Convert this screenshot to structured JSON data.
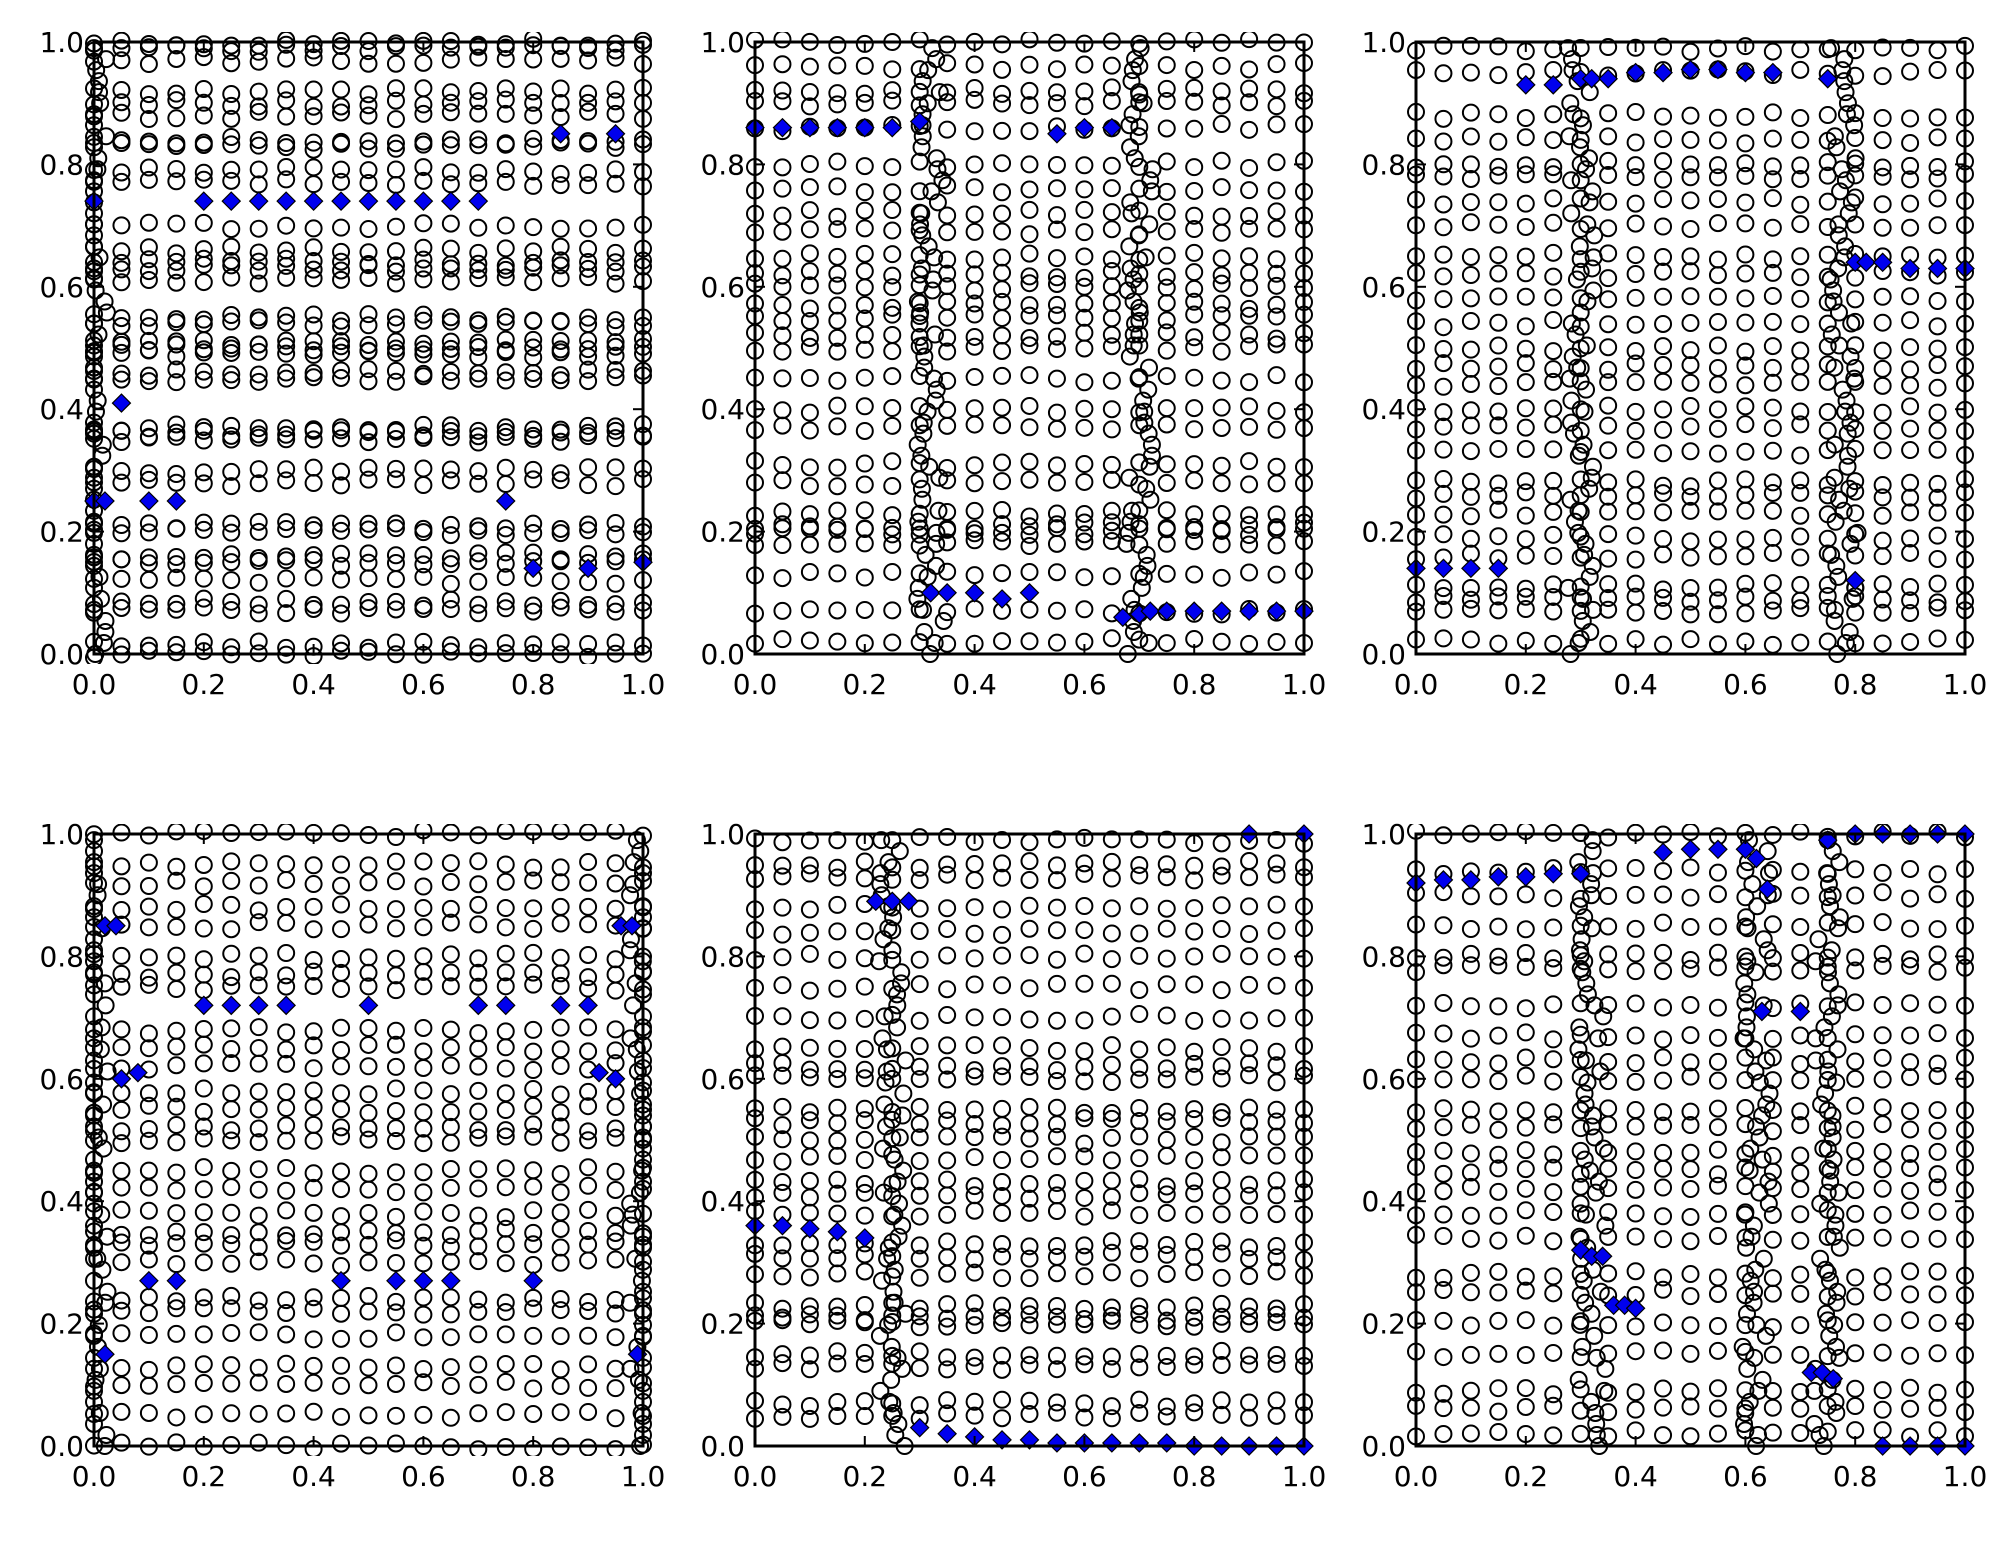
{
  "chart_data": [
    {
      "type": "scatter",
      "title": "",
      "xlim": [
        0,
        1
      ],
      "ylim": [
        0,
        1
      ],
      "xticks": [
        "0.0",
        "0.2",
        "0.4",
        "0.6",
        "0.8",
        "1.0"
      ],
      "yticks": [
        "0.0",
        "0.2",
        "0.4",
        "0.6",
        "0.8",
        "1.0"
      ],
      "circle_series": {
        "x_step": 0.05,
        "y_levels": [
          0,
          0.015,
          0.07,
          0.085,
          0.12,
          0.15,
          0.16,
          0.2,
          0.21,
          0.28,
          0.3,
          0.35,
          0.36,
          0.37,
          0.45,
          0.46,
          0.49,
          0.5,
          0.51,
          0.54,
          0.55,
          0.61,
          0.63,
          0.64,
          0.66,
          0.7,
          0.77,
          0.79,
          0.83,
          0.84,
          0.88,
          0.9,
          0.92,
          0.97,
          0.99,
          1.0
        ],
        "dense_columns": [
          0.0
        ]
      },
      "highlight_series": {
        "marker": "diamond",
        "color": "#0000ee",
        "points": [
          [
            0,
            0.74
          ],
          [
            0.2,
            0.74
          ],
          [
            0.25,
            0.74
          ],
          [
            0.3,
            0.74
          ],
          [
            0.35,
            0.74
          ],
          [
            0.4,
            0.74
          ],
          [
            0.45,
            0.74
          ],
          [
            0.5,
            0.74
          ],
          [
            0.55,
            0.74
          ],
          [
            0.6,
            0.74
          ],
          [
            0.65,
            0.74
          ],
          [
            0.7,
            0.74
          ],
          [
            0.85,
            0.85
          ],
          [
            0.95,
            0.85
          ],
          [
            0.05,
            0.41
          ],
          [
            0.0,
            0.25
          ],
          [
            0.02,
            0.25
          ],
          [
            0.1,
            0.25
          ],
          [
            0.15,
            0.25
          ],
          [
            0.75,
            0.25
          ],
          [
            0.8,
            0.14
          ],
          [
            0.9,
            0.14
          ],
          [
            1.0,
            0.15
          ]
        ]
      }
    },
    {
      "type": "scatter",
      "title": "",
      "xlim": [
        0,
        1
      ],
      "ylim": [
        0,
        1
      ],
      "xticks": [
        "0.0",
        "0.2",
        "0.4",
        "0.6",
        "0.8",
        "1.0"
      ],
      "yticks": [
        "0.0",
        "0.2",
        "0.4",
        "0.6",
        "0.8",
        "1.0"
      ],
      "circle_series": {
        "x_step": 0.05,
        "y_levels": [
          0.02,
          0.07,
          0.13,
          0.18,
          0.2,
          0.21,
          0.23,
          0.28,
          0.31,
          0.37,
          0.4,
          0.45,
          0.5,
          0.52,
          0.55,
          0.57,
          0.6,
          0.62,
          0.65,
          0.69,
          0.72,
          0.76,
          0.8,
          0.86,
          0.9,
          0.92,
          0.96,
          1.0
        ],
        "dense_columns": [
          0.32,
          0.7
        ]
      },
      "highlight_series": {
        "marker": "diamond",
        "color": "#0000ee",
        "points": [
          [
            0,
            0.86
          ],
          [
            0.05,
            0.86
          ],
          [
            0.1,
            0.86
          ],
          [
            0.15,
            0.86
          ],
          [
            0.2,
            0.86
          ],
          [
            0.25,
            0.86
          ],
          [
            0.3,
            0.87
          ],
          [
            0.55,
            0.85
          ],
          [
            0.6,
            0.86
          ],
          [
            0.65,
            0.86
          ],
          [
            0.32,
            0.1
          ],
          [
            0.35,
            0.1
          ],
          [
            0.4,
            0.1
          ],
          [
            0.45,
            0.09
          ],
          [
            0.5,
            0.1
          ],
          [
            0.67,
            0.06
          ],
          [
            0.7,
            0.065
          ],
          [
            0.72,
            0.07
          ],
          [
            0.75,
            0.07
          ],
          [
            0.8,
            0.07
          ],
          [
            0.85,
            0.07
          ],
          [
            0.9,
            0.07
          ],
          [
            0.95,
            0.07
          ],
          [
            1.0,
            0.07
          ]
        ]
      }
    },
    {
      "type": "scatter",
      "title": "",
      "xlim": [
        0,
        1
      ],
      "ylim": [
        0,
        1
      ],
      "xticks": [
        "0.0",
        "0.2",
        "0.4",
        "0.6",
        "0.8",
        "1.0"
      ],
      "yticks": [
        "0.0",
        "0.2",
        "0.4",
        "0.6",
        "0.8",
        "1.0"
      ],
      "circle_series": {
        "x_step": 0.05,
        "y_levels": [
          0.02,
          0.07,
          0.09,
          0.11,
          0.16,
          0.19,
          0.23,
          0.26,
          0.28,
          0.33,
          0.37,
          0.4,
          0.44,
          0.47,
          0.5,
          0.54,
          0.58,
          0.62,
          0.65,
          0.7,
          0.74,
          0.78,
          0.8,
          0.84,
          0.88,
          0.95,
          0.99
        ],
        "dense_columns": [
          0.3,
          0.78
        ]
      },
      "highlight_series": {
        "marker": "diamond",
        "color": "#0000ee",
        "points": [
          [
            0.2,
            0.93
          ],
          [
            0.25,
            0.93
          ],
          [
            0.3,
            0.94
          ],
          [
            0.32,
            0.94
          ],
          [
            0.35,
            0.94
          ],
          [
            0.4,
            0.95
          ],
          [
            0.45,
            0.95
          ],
          [
            0.5,
            0.955
          ],
          [
            0.55,
            0.955
          ],
          [
            0.6,
            0.95
          ],
          [
            0.65,
            0.95
          ],
          [
            0.75,
            0.94
          ],
          [
            0.8,
            0.64
          ],
          [
            0.82,
            0.64
          ],
          [
            0.85,
            0.64
          ],
          [
            0.9,
            0.63
          ],
          [
            0.95,
            0.63
          ],
          [
            1.0,
            0.63
          ],
          [
            0,
            0.14
          ],
          [
            0.05,
            0.14
          ],
          [
            0.1,
            0.14
          ],
          [
            0.15,
            0.14
          ],
          [
            0.8,
            0.12
          ]
        ]
      }
    },
    {
      "type": "scatter",
      "title": "",
      "xlim": [
        0,
        1
      ],
      "ylim": [
        0,
        1
      ],
      "xticks": [
        "0.0",
        "0.2",
        "0.4",
        "0.6",
        "0.8",
        "1.0"
      ],
      "yticks": [
        "0.0",
        "0.2",
        "0.4",
        "0.6",
        "0.8",
        "1.0"
      ],
      "circle_series": {
        "x_step": 0.05,
        "y_levels": [
          0,
          0.05,
          0.1,
          0.13,
          0.18,
          0.22,
          0.24,
          0.3,
          0.33,
          0.35,
          0.38,
          0.42,
          0.45,
          0.5,
          0.52,
          0.55,
          0.58,
          0.62,
          0.65,
          0.68,
          0.75,
          0.77,
          0.8,
          0.85,
          0.88,
          0.92,
          0.95,
          1.0
        ],
        "dense_columns": [
          0.0,
          1.0
        ]
      },
      "highlight_series": {
        "marker": "diamond",
        "color": "#0000ee",
        "points": [
          [
            0.02,
            0.85
          ],
          [
            0.04,
            0.85
          ],
          [
            0.96,
            0.85
          ],
          [
            0.98,
            0.85
          ],
          [
            0.2,
            0.72
          ],
          [
            0.25,
            0.72
          ],
          [
            0.3,
            0.72
          ],
          [
            0.35,
            0.72
          ],
          [
            0.5,
            0.72
          ],
          [
            0.7,
            0.72
          ],
          [
            0.75,
            0.72
          ],
          [
            0.85,
            0.72
          ],
          [
            0.9,
            0.72
          ],
          [
            0.05,
            0.6
          ],
          [
            0.08,
            0.61
          ],
          [
            0.92,
            0.61
          ],
          [
            0.95,
            0.6
          ],
          [
            0.1,
            0.27
          ],
          [
            0.15,
            0.27
          ],
          [
            0.45,
            0.27
          ],
          [
            0.55,
            0.27
          ],
          [
            0.6,
            0.27
          ],
          [
            0.65,
            0.27
          ],
          [
            0.8,
            0.27
          ],
          [
            0.02,
            0.15
          ],
          [
            0.99,
            0.15
          ]
        ]
      }
    },
    {
      "type": "scatter",
      "title": "",
      "xlim": [
        0,
        1
      ],
      "ylim": [
        0,
        1
      ],
      "xticks": [
        "0.0",
        "0.2",
        "0.4",
        "0.6",
        "0.8",
        "1.0"
      ],
      "yticks": [
        "0.0",
        "0.2",
        "0.4",
        "0.6",
        "0.8",
        "1.0"
      ],
      "circle_series": {
        "x_step": 0.05,
        "y_levels": [
          0.05,
          0.07,
          0.13,
          0.15,
          0.2,
          0.21,
          0.23,
          0.28,
          0.31,
          0.33,
          0.38,
          0.41,
          0.43,
          0.47,
          0.5,
          0.53,
          0.55,
          0.6,
          0.62,
          0.65,
          0.7,
          0.75,
          0.8,
          0.84,
          0.88,
          0.93,
          0.95,
          0.99
        ],
        "dense_columns": [
          0.25
        ]
      },
      "highlight_series": {
        "marker": "diamond",
        "color": "#0000ee",
        "points": [
          [
            0.9,
            1.0
          ],
          [
            1.0,
            1.0
          ],
          [
            0.22,
            0.89
          ],
          [
            0.25,
            0.89
          ],
          [
            0.28,
            0.89
          ],
          [
            0,
            0.36
          ],
          [
            0.05,
            0.36
          ],
          [
            0.1,
            0.355
          ],
          [
            0.15,
            0.35
          ],
          [
            0.2,
            0.34
          ],
          [
            0.3,
            0.03
          ],
          [
            0.35,
            0.02
          ],
          [
            0.4,
            0.015
          ],
          [
            0.45,
            0.01
          ],
          [
            0.5,
            0.01
          ],
          [
            0.55,
            0.005
          ],
          [
            0.6,
            0.005
          ],
          [
            0.65,
            0.005
          ],
          [
            0.7,
            0.005
          ],
          [
            0.75,
            0.005
          ],
          [
            0.8,
            0
          ],
          [
            0.85,
            0
          ],
          [
            0.9,
            0
          ],
          [
            0.95,
            0
          ],
          [
            1.0,
            0
          ]
        ]
      }
    },
    {
      "type": "scatter",
      "title": "",
      "xlim": [
        0,
        1
      ],
      "ylim": [
        0,
        1
      ],
      "xticks": [
        "0.0",
        "0.2",
        "0.4",
        "0.6",
        "0.8",
        "1.0"
      ],
      "yticks": [
        "0.0",
        "0.2",
        "0.4",
        "0.6",
        "0.8",
        "1.0"
      ],
      "circle_series": {
        "x_step": 0.05,
        "y_levels": [
          0.02,
          0.06,
          0.09,
          0.15,
          0.2,
          0.25,
          0.28,
          0.34,
          0.38,
          0.42,
          0.45,
          0.48,
          0.52,
          0.55,
          0.6,
          0.63,
          0.67,
          0.72,
          0.78,
          0.8,
          0.85,
          0.9,
          0.94,
          1.0
        ],
        "dense_columns": [
          0.32,
          0.62,
          0.75
        ]
      },
      "highlight_series": {
        "marker": "diamond",
        "color": "#0000ee",
        "points": [
          [
            0,
            0.92
          ],
          [
            0.05,
            0.925
          ],
          [
            0.1,
            0.925
          ],
          [
            0.15,
            0.93
          ],
          [
            0.2,
            0.93
          ],
          [
            0.25,
            0.935
          ],
          [
            0.3,
            0.935
          ],
          [
            0.45,
            0.97
          ],
          [
            0.5,
            0.975
          ],
          [
            0.55,
            0.975
          ],
          [
            0.6,
            0.975
          ],
          [
            0.62,
            0.96
          ],
          [
            0.64,
            0.91
          ],
          [
            0.63,
            0.71
          ],
          [
            0.7,
            0.71
          ],
          [
            0.75,
            0.99
          ],
          [
            0.8,
            1.0
          ],
          [
            0.85,
            1.0
          ],
          [
            0.9,
            1.0
          ],
          [
            0.95,
            1.0
          ],
          [
            1.0,
            1.0
          ],
          [
            0.3,
            0.32
          ],
          [
            0.32,
            0.31
          ],
          [
            0.34,
            0.31
          ],
          [
            0.36,
            0.23
          ],
          [
            0.38,
            0.23
          ],
          [
            0.4,
            0.225
          ],
          [
            0.72,
            0.12
          ],
          [
            0.74,
            0.12
          ],
          [
            0.76,
            0.11
          ],
          [
            0.85,
            0
          ],
          [
            0.9,
            0
          ],
          [
            0.95,
            0
          ],
          [
            1.0,
            0
          ]
        ]
      }
    }
  ]
}
